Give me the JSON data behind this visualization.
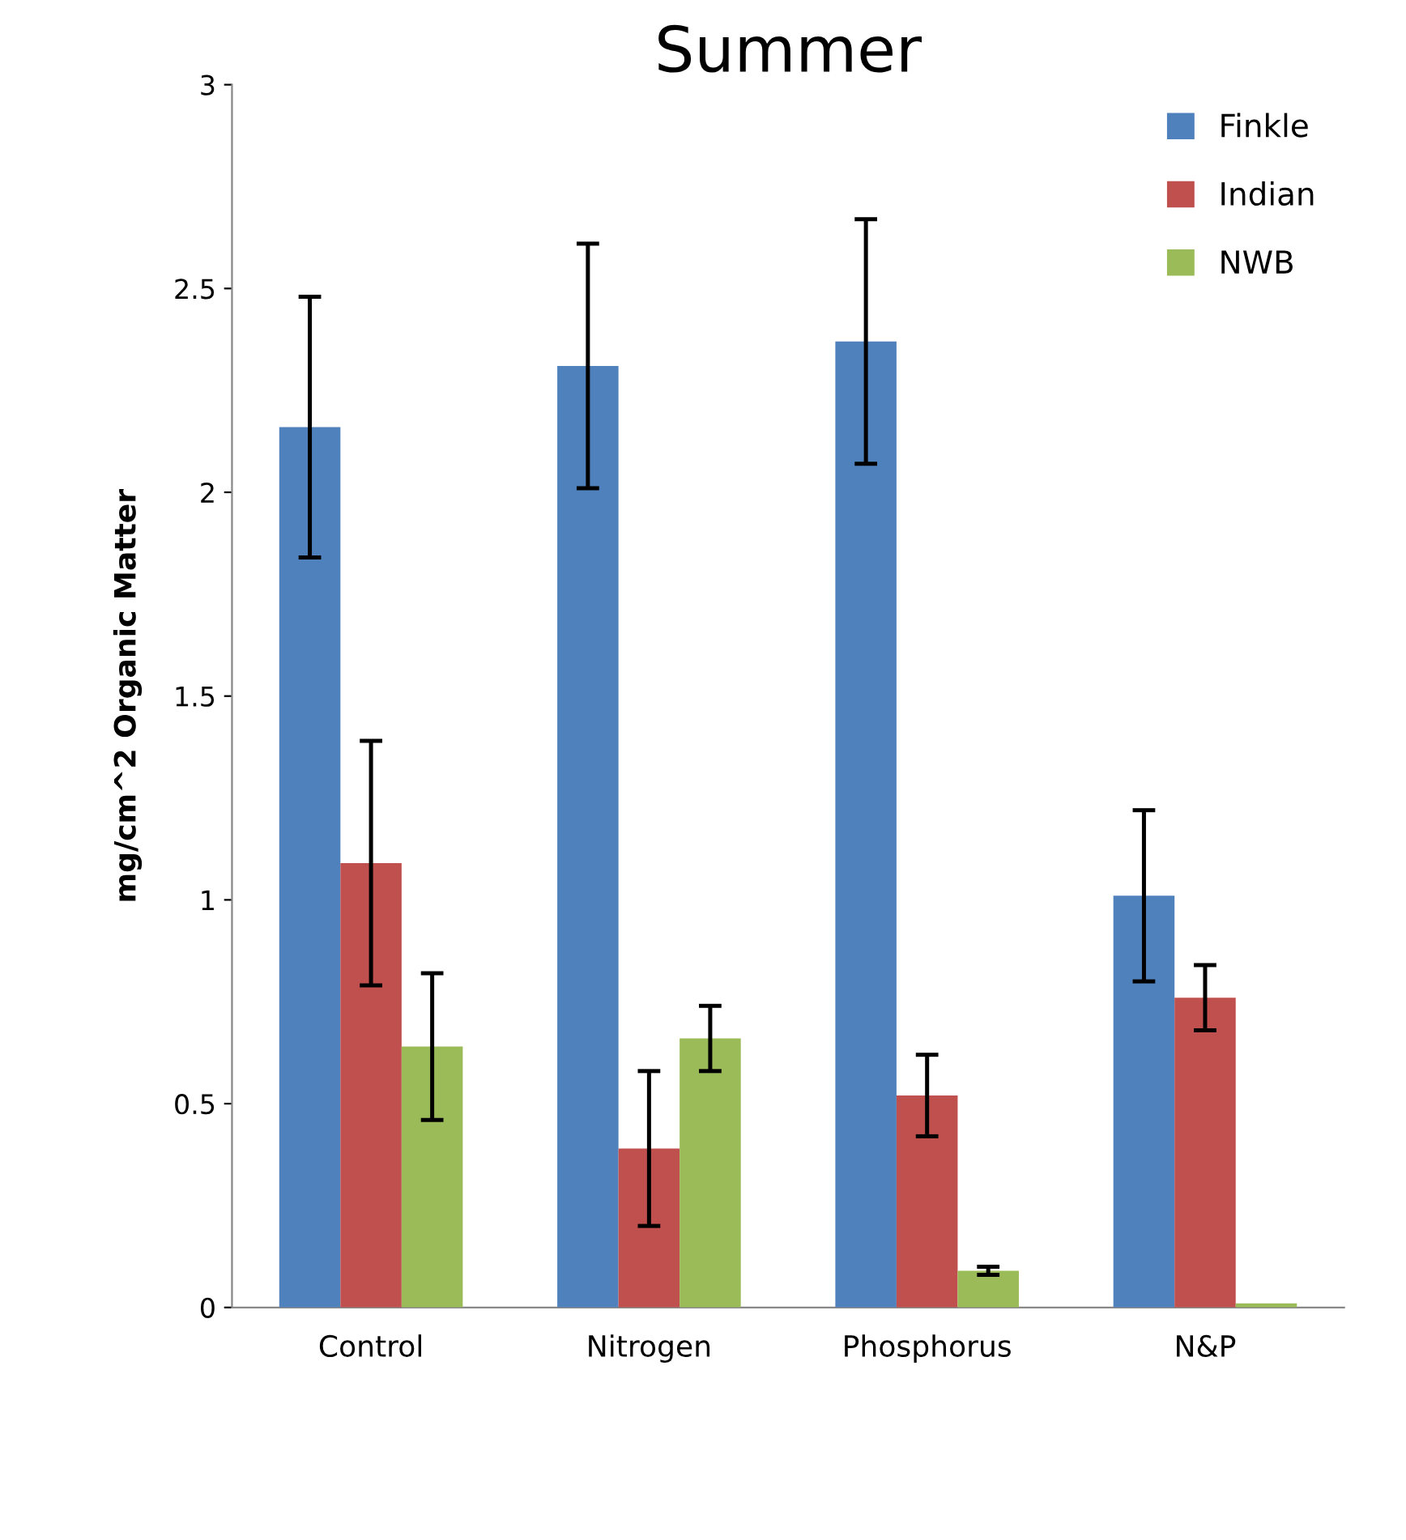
{
  "chart_data": {
    "type": "bar",
    "title": "Summer",
    "ylabel": "mg/cm^2 Organic Matter",
    "categories": [
      "Control",
      "Nitrogen",
      "Phosphorus",
      "N&P"
    ],
    "series": [
      {
        "name": "Finkle",
        "color": "#4f81bd",
        "values": [
          2.16,
          2.31,
          2.37,
          1.01
        ],
        "errors": [
          0.32,
          0.3,
          0.3,
          0.21
        ]
      },
      {
        "name": "Indian",
        "color": "#c0504d",
        "values": [
          1.09,
          0.39,
          0.52,
          0.76
        ],
        "errors": [
          0.3,
          0.19,
          0.1,
          0.08
        ]
      },
      {
        "name": "NWB",
        "color": "#9bbb59",
        "values": [
          0.64,
          0.66,
          0.09,
          0.01
        ],
        "errors": [
          0.18,
          0.08,
          0.01,
          null
        ]
      }
    ],
    "ylim": [
      0,
      3
    ],
    "yticks": [
      0,
      0.5,
      1,
      1.5,
      2,
      2.5,
      3
    ],
    "grid": false,
    "legend": "top right"
  }
}
